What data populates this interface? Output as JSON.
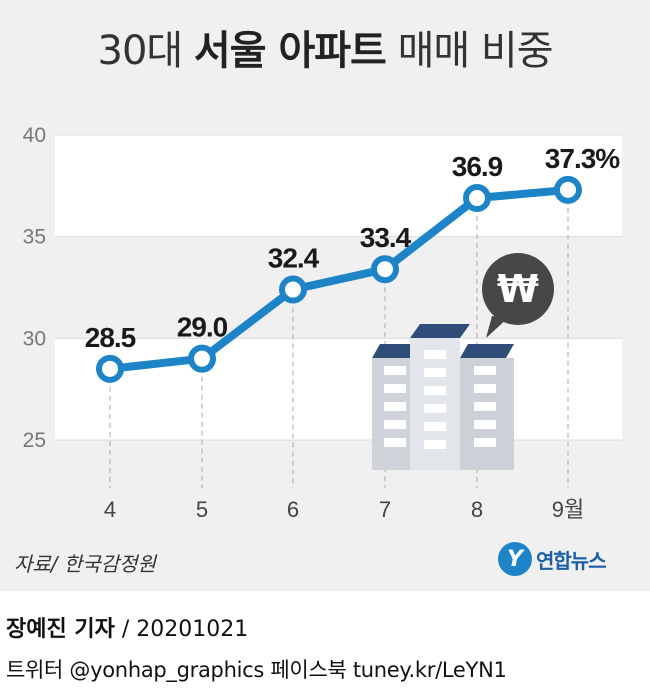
{
  "header": {
    "title_prefix": "30대 ",
    "title_bold": "서울 아파트",
    "title_suffix": " 매매 비중"
  },
  "chart_data": {
    "type": "line",
    "categories": [
      "4",
      "5",
      "6",
      "7",
      "8",
      "9월"
    ],
    "values": [
      28.5,
      29.0,
      32.4,
      33.4,
      36.9,
      37.3
    ],
    "data_labels": [
      "28.5",
      "29.0",
      "32.4",
      "33.4",
      "36.9",
      "37.3%"
    ],
    "yticks": [
      25,
      30,
      35,
      40
    ],
    "ytick_labels": [
      "25",
      "30",
      "35",
      "40"
    ],
    "ylim": [
      25,
      40
    ],
    "unit": "%",
    "grid": true,
    "line_color": "#1d84c8",
    "band_color": "#ffffff"
  },
  "illustration": {
    "building_icon": "apartment-building-icon",
    "bubble_icon": "won-speech-bubble-icon",
    "bubble_symbol": "₩",
    "bubble_color": "#474747",
    "roof_color": "#2f4d78"
  },
  "footer": {
    "source": "자료/ 한국감정원",
    "logo_mark": "Y",
    "logo_text": "연합뉴스",
    "reporter": "장예진 기자",
    "date": " / 20201021",
    "social": "트위터 @yonhap_graphics  페이스북 tuney.kr/LeYN1"
  }
}
